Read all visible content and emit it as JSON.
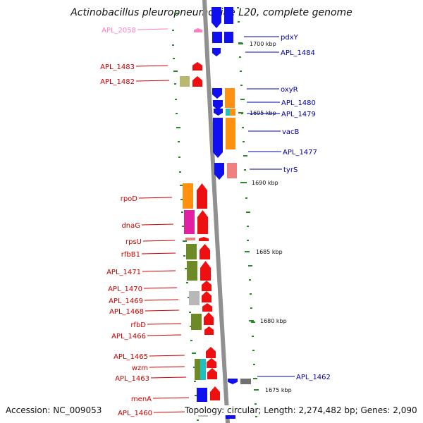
{
  "title": "Actinobacillus pleuropneumoniae L20, complete genome",
  "footer": {
    "accession": "Accession: NC_009053",
    "summary": "Topology: circular; Length: 2,274,482 bp; Genes: 2,090"
  },
  "colors": {
    "backbone": "#909090",
    "tick": "#2a8a2a",
    "label_left": "#cc0000",
    "label_right": "#0000aa",
    "label_pink": "#ff7fc0",
    "blue": "#1010ee",
    "red": "#ee1010",
    "orange": "#ff9010",
    "olive": "#6e8a26",
    "khaki": "#b8b870",
    "magenta": "#e020a0",
    "gray": "#b8b8b8",
    "cyan": "#20c0c0",
    "salmon": "#f08080",
    "darkgray": "#707070"
  },
  "kbp_markers": [
    "1700 kbp",
    "1695 kbp",
    "1690 kbp",
    "1685 kbp",
    "1680 kbp",
    "1675 kbp"
  ],
  "left_labels": [
    "APL_2058",
    "APL_1483",
    "APL_1482",
    "rpoD",
    "dnaG",
    "rpsU",
    "rfbB1",
    "APL_1471",
    "APL_1470",
    "APL_1469",
    "APL_1468",
    "rfbD",
    "APL_1466",
    "APL_1465",
    "wzm",
    "APL_1463",
    "menA",
    "APL_1460"
  ],
  "right_labels": [
    "pdxY",
    "APL_1484",
    "oxyR",
    "APL_1480",
    "APL_1479",
    "vacB",
    "APL_1477",
    "tyrS",
    "APL_1462"
  ]
}
